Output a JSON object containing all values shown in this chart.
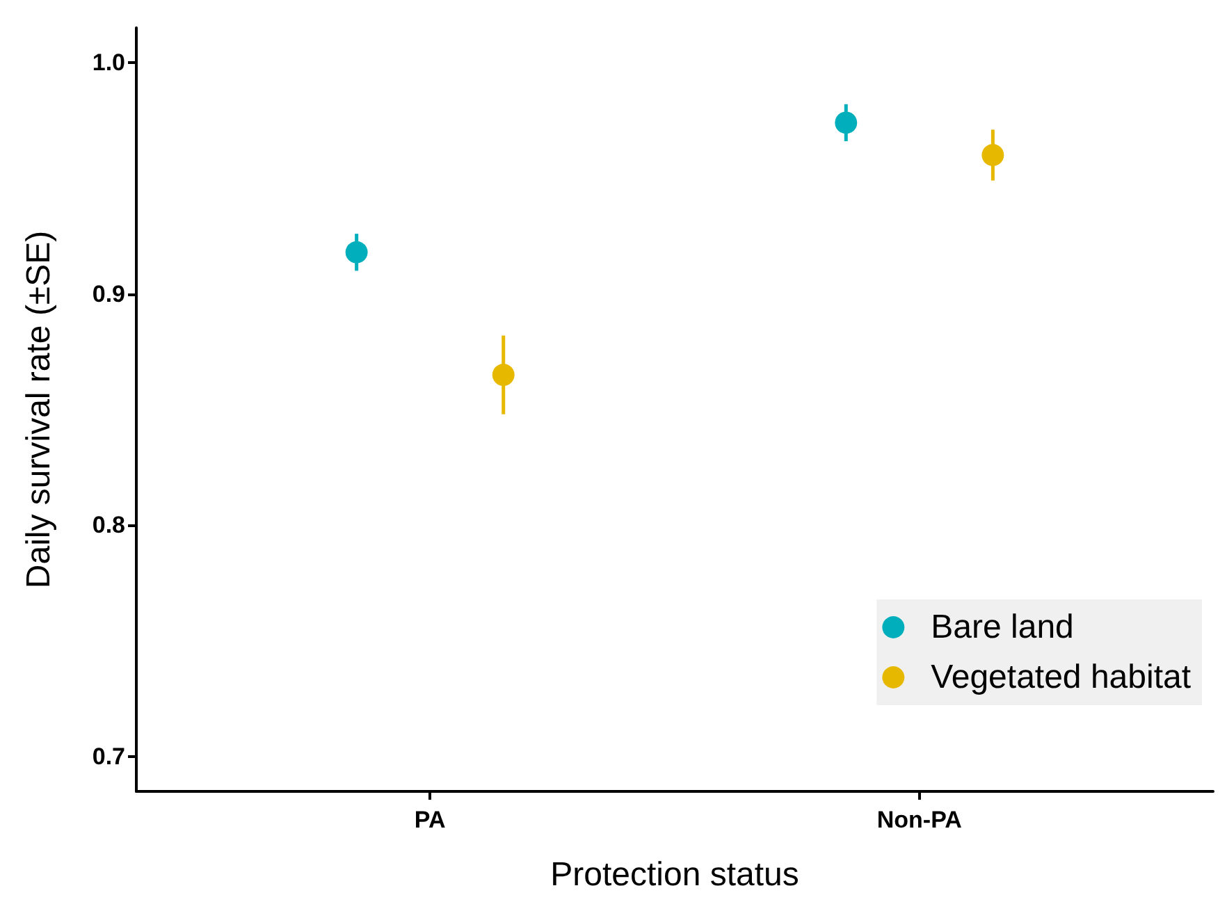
{
  "chart_data": {
    "type": "scatter",
    "xlabel": "Protection status",
    "ylabel": "Daily survival rate (±SE)",
    "categories": [
      "PA",
      "Non-PA"
    ],
    "series": [
      {
        "name": "Bare land",
        "color": "#00afbb",
        "values": [
          0.918,
          0.974
        ],
        "errors": [
          0.008,
          0.008
        ]
      },
      {
        "name": "Vegetated habitat",
        "color": "#e7b800",
        "values": [
          0.865,
          0.96
        ],
        "errors": [
          0.017,
          0.011
        ]
      }
    ],
    "ylim": [
      0.685,
      1.015
    ],
    "yticks": [
      0.7,
      0.8,
      0.9,
      {
        "value": 1,
        "label": "1.0"
      }
    ],
    "grid": false,
    "legend": "bottom right",
    "marker": "circle"
  }
}
